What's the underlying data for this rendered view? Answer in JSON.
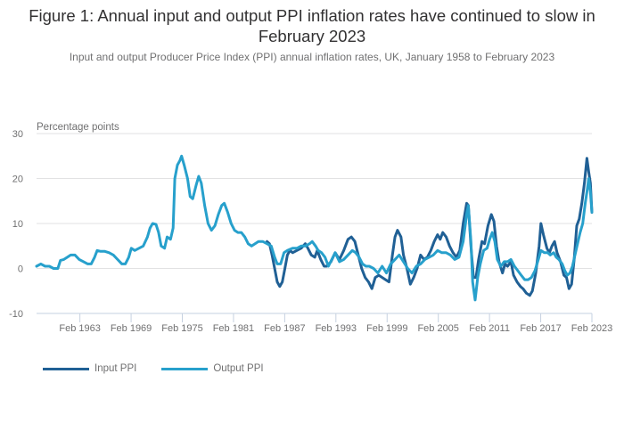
{
  "chart_data": {
    "type": "line",
    "title": "Figure 1: Annual input and output PPI inflation rates have continued to slow in February 2023",
    "subtitle": "Input and output Producer Price Index (PPI) annual inflation rates, UK, January 1958 to February 2023",
    "ylabel": "Percentage points",
    "xlabel": "",
    "ylim": [
      -10,
      30
    ],
    "yticks": [
      30,
      20,
      10,
      0,
      -10
    ],
    "xlim": [
      1958.0,
      2023.08
    ],
    "xticks": [
      {
        "label": "Feb 1963",
        "value": 1963.08
      },
      {
        "label": "Feb 1969",
        "value": 1969.08
      },
      {
        "label": "Feb 1975",
        "value": 1975.08
      },
      {
        "label": "Feb 1981",
        "value": 1981.08
      },
      {
        "label": "Feb 1987",
        "value": 1987.08
      },
      {
        "label": "Feb 1993",
        "value": 1993.08
      },
      {
        "label": "Feb 1999",
        "value": 1999.08
      },
      {
        "label": "Feb 2005",
        "value": 2005.08
      },
      {
        "label": "Feb 2011",
        "value": 2011.08
      },
      {
        "label": "Feb 2017",
        "value": 2017.08
      },
      {
        "label": "Feb 2023",
        "value": 2023.08
      }
    ],
    "grid": true,
    "legend_position": "bottom-left",
    "series": [
      {
        "name": "Input PPI",
        "color": "#206095",
        "points": [
          [
            1985.0,
            6.0
          ],
          [
            1985.3,
            5.5
          ],
          [
            1985.6,
            3.0
          ],
          [
            1985.9,
            0.0
          ],
          [
            1986.2,
            -3.0
          ],
          [
            1986.5,
            -4.0
          ],
          [
            1986.8,
            -3.0
          ],
          [
            1987.1,
            0.0
          ],
          [
            1987.4,
            3.0
          ],
          [
            1987.7,
            4.0
          ],
          [
            1988.0,
            3.5
          ],
          [
            1988.5,
            4.0
          ],
          [
            1989.0,
            4.5
          ],
          [
            1989.5,
            5.5
          ],
          [
            1989.8,
            4.5
          ],
          [
            1990.2,
            3.0
          ],
          [
            1990.6,
            2.5
          ],
          [
            1990.9,
            4.0
          ],
          [
            1991.3,
            2.0
          ],
          [
            1991.7,
            0.5
          ],
          [
            1992.0,
            0.5
          ],
          [
            1992.5,
            1.5
          ],
          [
            1993.0,
            3.5
          ],
          [
            1993.5,
            2.0
          ],
          [
            1994.0,
            4.0
          ],
          [
            1994.5,
            6.5
          ],
          [
            1994.9,
            7.0
          ],
          [
            1995.3,
            6.0
          ],
          [
            1995.7,
            3.0
          ],
          [
            1996.1,
            0.0
          ],
          [
            1996.5,
            -2.0
          ],
          [
            1996.9,
            -3.0
          ],
          [
            1997.3,
            -4.5
          ],
          [
            1997.7,
            -2.0
          ],
          [
            1998.1,
            -1.5
          ],
          [
            1998.5,
            -2.0
          ],
          [
            1998.9,
            -2.5
          ],
          [
            1999.3,
            -3.0
          ],
          [
            1999.7,
            3.0
          ],
          [
            2000.0,
            7.0
          ],
          [
            2000.3,
            8.5
          ],
          [
            2000.7,
            7.0
          ],
          [
            2001.0,
            3.0
          ],
          [
            2001.4,
            0.0
          ],
          [
            2001.8,
            -3.5
          ],
          [
            2002.2,
            -2.0
          ],
          [
            2002.6,
            0.0
          ],
          [
            2003.0,
            3.0
          ],
          [
            2003.4,
            2.0
          ],
          [
            2003.8,
            2.5
          ],
          [
            2004.2,
            4.0
          ],
          [
            2004.6,
            6.0
          ],
          [
            2005.0,
            7.5
          ],
          [
            2005.3,
            6.5
          ],
          [
            2005.6,
            8.0
          ],
          [
            2006.0,
            7.0
          ],
          [
            2006.4,
            5.0
          ],
          [
            2006.8,
            3.5
          ],
          [
            2007.2,
            2.5
          ],
          [
            2007.6,
            4.0
          ],
          [
            2008.0,
            10.0
          ],
          [
            2008.4,
            14.5
          ],
          [
            2008.6,
            14.0
          ],
          [
            2008.9,
            5.0
          ],
          [
            2009.2,
            -2.0
          ],
          [
            2009.5,
            -2.0
          ],
          [
            2009.8,
            2.0
          ],
          [
            2010.2,
            6.0
          ],
          [
            2010.5,
            5.5
          ],
          [
            2010.9,
            9.5
          ],
          [
            2011.3,
            12.0
          ],
          [
            2011.6,
            10.5
          ],
          [
            2011.9,
            5.0
          ],
          [
            2012.2,
            1.5
          ],
          [
            2012.6,
            -1.0
          ],
          [
            2012.9,
            1.0
          ],
          [
            2013.2,
            0.5
          ],
          [
            2013.6,
            1.5
          ],
          [
            2013.9,
            -1.5
          ],
          [
            2014.3,
            -3.0
          ],
          [
            2014.7,
            -4.0
          ],
          [
            2015.0,
            -4.5
          ],
          [
            2015.4,
            -5.5
          ],
          [
            2015.8,
            -6.0
          ],
          [
            2016.1,
            -5.0
          ],
          [
            2016.5,
            -1.0
          ],
          [
            2016.9,
            5.0
          ],
          [
            2017.1,
            10.0
          ],
          [
            2017.4,
            7.5
          ],
          [
            2017.8,
            4.5
          ],
          [
            2018.1,
            3.5
          ],
          [
            2018.4,
            5.0
          ],
          [
            2018.7,
            6.0
          ],
          [
            2019.0,
            3.5
          ],
          [
            2019.4,
            1.5
          ],
          [
            2019.8,
            -1.5
          ],
          [
            2020.1,
            -2.0
          ],
          [
            2020.4,
            -4.5
          ],
          [
            2020.7,
            -3.5
          ],
          [
            2021.0,
            2.0
          ],
          [
            2021.3,
            9.5
          ],
          [
            2021.6,
            11.0
          ],
          [
            2021.9,
            14.5
          ],
          [
            2022.2,
            19.0
          ],
          [
            2022.5,
            24.5
          ],
          [
            2022.7,
            21.5
          ],
          [
            2022.9,
            19.0
          ],
          [
            2023.08,
            12.5
          ]
        ]
      },
      {
        "name": "Output PPI",
        "color": "#27a0cc",
        "points": [
          [
            1958.0,
            0.5
          ],
          [
            1958.5,
            1.0
          ],
          [
            1959.0,
            0.5
          ],
          [
            1959.5,
            0.5
          ],
          [
            1960.0,
            0.0
          ],
          [
            1960.5,
            0.0
          ],
          [
            1960.8,
            1.8
          ],
          [
            1961.2,
            2.0
          ],
          [
            1961.6,
            2.5
          ],
          [
            1962.0,
            3.0
          ],
          [
            1962.5,
            3.0
          ],
          [
            1963.0,
            2.0
          ],
          [
            1963.5,
            1.5
          ],
          [
            1964.0,
            1.0
          ],
          [
            1964.4,
            1.0
          ],
          [
            1964.8,
            2.5
          ],
          [
            1965.1,
            4.0
          ],
          [
            1965.5,
            3.8
          ],
          [
            1966.0,
            3.8
          ],
          [
            1966.5,
            3.5
          ],
          [
            1967.0,
            3.0
          ],
          [
            1967.5,
            2.0
          ],
          [
            1968.0,
            1.0
          ],
          [
            1968.4,
            1.0
          ],
          [
            1968.8,
            2.5
          ],
          [
            1969.1,
            4.5
          ],
          [
            1969.5,
            4.0
          ],
          [
            1970.0,
            4.5
          ],
          [
            1970.5,
            5.0
          ],
          [
            1971.0,
            7.0
          ],
          [
            1971.3,
            9.0
          ],
          [
            1971.6,
            10.0
          ],
          [
            1972.0,
            9.8
          ],
          [
            1972.3,
            8.0
          ],
          [
            1972.6,
            5.0
          ],
          [
            1973.0,
            4.5
          ],
          [
            1973.3,
            7.0
          ],
          [
            1973.7,
            6.5
          ],
          [
            1974.0,
            9.0
          ],
          [
            1974.2,
            20.0
          ],
          [
            1974.5,
            23.0
          ],
          [
            1974.8,
            24.0
          ],
          [
            1975.0,
            25.0
          ],
          [
            1975.3,
            23.0
          ],
          [
            1975.7,
            20.0
          ],
          [
            1976.0,
            16.0
          ],
          [
            1976.3,
            15.5
          ],
          [
            1976.7,
            18.5
          ],
          [
            1977.0,
            20.5
          ],
          [
            1977.3,
            19.0
          ],
          [
            1977.7,
            14.0
          ],
          [
            1978.1,
            10.0
          ],
          [
            1978.5,
            8.5
          ],
          [
            1978.9,
            9.5
          ],
          [
            1979.3,
            12.0
          ],
          [
            1979.7,
            14.0
          ],
          [
            1980.0,
            14.5
          ],
          [
            1980.4,
            12.5
          ],
          [
            1980.8,
            10.0
          ],
          [
            1981.2,
            8.5
          ],
          [
            1981.6,
            8.0
          ],
          [
            1982.0,
            8.0
          ],
          [
            1982.4,
            7.0
          ],
          [
            1982.8,
            5.5
          ],
          [
            1983.2,
            5.0
          ],
          [
            1983.6,
            5.5
          ],
          [
            1984.0,
            6.0
          ],
          [
            1984.5,
            6.0
          ],
          [
            1985.0,
            5.5
          ],
          [
            1985.5,
            5.0
          ],
          [
            1985.9,
            2.5
          ],
          [
            1986.2,
            1.0
          ],
          [
            1986.6,
            1.0
          ],
          [
            1987.0,
            3.5
          ],
          [
            1987.4,
            4.0
          ],
          [
            1988.0,
            4.5
          ],
          [
            1988.5,
            4.5
          ],
          [
            1989.0,
            5.0
          ],
          [
            1989.5,
            5.0
          ],
          [
            1990.0,
            5.5
          ],
          [
            1990.3,
            6.0
          ],
          [
            1990.7,
            5.0
          ],
          [
            1991.0,
            4.0
          ],
          [
            1991.4,
            3.5
          ],
          [
            1991.8,
            2.5
          ],
          [
            1992.2,
            0.5
          ],
          [
            1992.6,
            2.0
          ],
          [
            1993.0,
            3.5
          ],
          [
            1993.5,
            1.5
          ],
          [
            1994.0,
            2.0
          ],
          [
            1994.5,
            3.0
          ],
          [
            1995.0,
            4.0
          ],
          [
            1995.4,
            3.5
          ],
          [
            1995.8,
            2.5
          ],
          [
            1996.2,
            1.0
          ],
          [
            1996.6,
            0.5
          ],
          [
            1997.0,
            0.5
          ],
          [
            1997.5,
            0.0
          ],
          [
            1998.0,
            -1.0
          ],
          [
            1998.5,
            0.5
          ],
          [
            1999.0,
            -1.0
          ],
          [
            1999.5,
            1.0
          ],
          [
            2000.0,
            2.0
          ],
          [
            2000.5,
            3.0
          ],
          [
            2001.0,
            1.5
          ],
          [
            2001.5,
            0.0
          ],
          [
            2002.0,
            -1.0
          ],
          [
            2002.5,
            0.5
          ],
          [
            2003.0,
            1.0
          ],
          [
            2003.5,
            2.0
          ],
          [
            2004.0,
            2.5
          ],
          [
            2004.5,
            3.0
          ],
          [
            2005.0,
            4.0
          ],
          [
            2005.5,
            3.5
          ],
          [
            2006.0,
            3.5
          ],
          [
            2006.5,
            3.0
          ],
          [
            2007.0,
            2.0
          ],
          [
            2007.5,
            2.5
          ],
          [
            2008.0,
            6.0
          ],
          [
            2008.4,
            12.0
          ],
          [
            2008.6,
            14.0
          ],
          [
            2008.9,
            6.0
          ],
          [
            2009.1,
            -3.0
          ],
          [
            2009.4,
            -7.0
          ],
          [
            2009.7,
            -2.0
          ],
          [
            2010.0,
            1.0
          ],
          [
            2010.4,
            4.0
          ],
          [
            2010.8,
            4.5
          ],
          [
            2011.1,
            6.5
          ],
          [
            2011.4,
            8.0
          ],
          [
            2011.7,
            6.0
          ],
          [
            2012.0,
            2.0
          ],
          [
            2012.4,
            0.5
          ],
          [
            2012.8,
            1.5
          ],
          [
            2013.2,
            1.5
          ],
          [
            2013.6,
            2.0
          ],
          [
            2014.0,
            0.5
          ],
          [
            2014.4,
            -0.5
          ],
          [
            2014.8,
            -1.5
          ],
          [
            2015.2,
            -2.5
          ],
          [
            2015.6,
            -2.5
          ],
          [
            2016.0,
            -2.0
          ],
          [
            2016.4,
            -0.5
          ],
          [
            2016.8,
            2.0
          ],
          [
            2017.1,
            4.0
          ],
          [
            2017.5,
            3.5
          ],
          [
            2017.9,
            3.5
          ],
          [
            2018.2,
            3.0
          ],
          [
            2018.6,
            3.5
          ],
          [
            2018.9,
            2.5
          ],
          [
            2019.2,
            2.0
          ],
          [
            2019.6,
            1.0
          ],
          [
            2019.9,
            -0.5
          ],
          [
            2020.2,
            -1.5
          ],
          [
            2020.5,
            -1.0
          ],
          [
            2020.8,
            0.5
          ],
          [
            2021.1,
            3.0
          ],
          [
            2021.4,
            5.5
          ],
          [
            2021.7,
            8.0
          ],
          [
            2022.0,
            10.0
          ],
          [
            2022.3,
            14.5
          ],
          [
            2022.5,
            17.0
          ],
          [
            2022.7,
            20.0
          ],
          [
            2022.9,
            17.0
          ],
          [
            2023.08,
            12.5
          ]
        ]
      }
    ]
  },
  "legend": {
    "items": [
      {
        "label": "Input PPI",
        "color": "#206095"
      },
      {
        "label": "Output PPI",
        "color": "#27a0cc"
      }
    ]
  }
}
